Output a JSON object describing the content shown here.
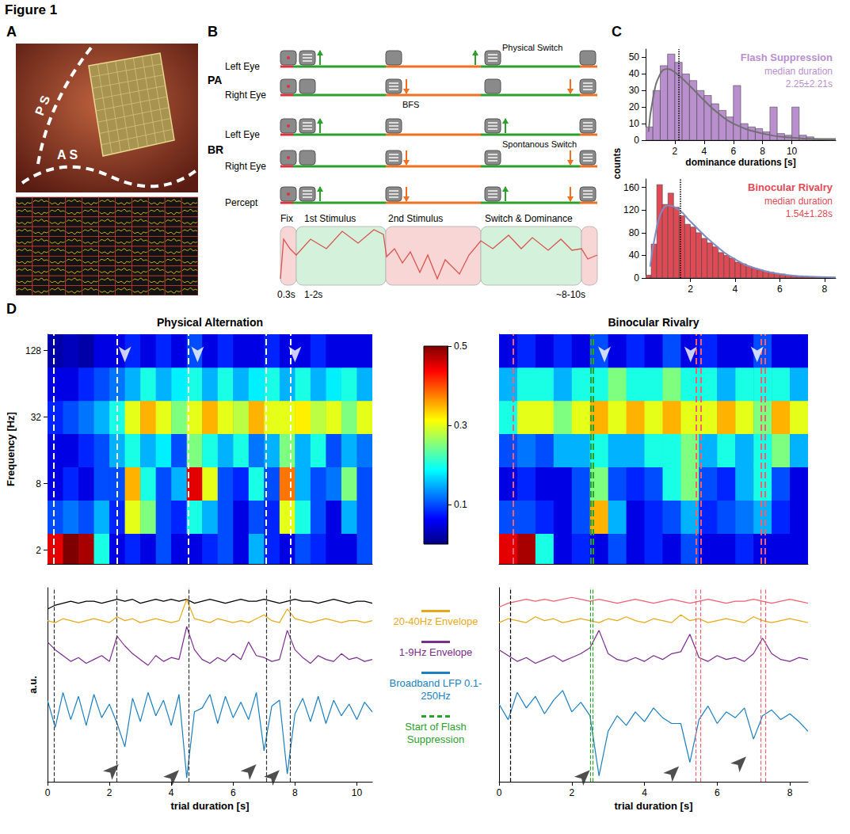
{
  "title": "Figure 1",
  "panel_a": {
    "letter": "A",
    "labels": [
      "P S",
      "A S"
    ]
  },
  "panel_b": {
    "letter": "B",
    "rows": [
      {
        "group": "PA",
        "eyes": [
          "Left Eye",
          "Right Eye"
        ]
      },
      {
        "group": "BR",
        "eyes": [
          "Left Eye",
          "Right Eye"
        ]
      }
    ],
    "percept": "Percept",
    "notes": [
      "Physical Switch",
      "BFS",
      "Spontanous Switch"
    ],
    "phases": [
      "Fix",
      "1st Stimulus",
      "2nd Stimulus",
      "Switch & Dominance"
    ],
    "times": [
      "0.3s",
      "1-2s",
      "~8-10s"
    ]
  },
  "panel_c": {
    "letter": "C",
    "ylabel": "counts"
  },
  "panel_d": {
    "letter": "D",
    "colorbar": {
      "range": [
        0,
        0.5
      ],
      "ticks": [
        0.1,
        0.3,
        0.5
      ]
    }
  },
  "chart_data": [
    {
      "type": "histogram",
      "title": "Flash Suppression",
      "annotations": [
        "median duration",
        "2.25±2.21s"
      ],
      "xlabel": "dominance durations [s]",
      "bins": [
        0,
        0.5,
        1,
        1.5,
        2,
        2.5,
        3,
        3.5,
        4,
        4.5,
        5,
        5.5,
        6,
        6.5,
        7,
        7.5,
        8,
        8.5,
        9,
        9.5,
        10,
        10.5,
        11,
        11.5,
        12,
        12.5,
        13
      ],
      "counts": [
        8,
        30,
        45,
        52,
        47,
        40,
        36,
        30,
        27,
        22,
        18,
        14,
        33,
        10,
        8,
        7,
        5,
        20,
        4,
        3,
        20,
        3,
        2,
        1,
        1,
        1
      ],
      "color": "#b98fce",
      "median": 2.25,
      "fit": {
        "x": [
          0.2,
          0.5,
          1,
          1.5,
          2,
          3,
          4,
          5,
          6,
          8,
          10,
          13
        ],
        "y": [
          5,
          25,
          40,
          43,
          41,
          33,
          24,
          16,
          10,
          4,
          1.5,
          0.3
        ],
        "color": "#707070"
      },
      "xlim": [
        0,
        13
      ],
      "ylim": [
        0,
        55
      ],
      "xticks": [
        2,
        4,
        6,
        8,
        10
      ],
      "yticks": [
        0,
        10,
        20,
        30,
        40,
        50
      ]
    },
    {
      "type": "histogram",
      "title": "Binocular Rivalry",
      "annotations": [
        "median duration",
        "1.54±1.28s"
      ],
      "bins": [
        0,
        0.25,
        0.5,
        0.75,
        1,
        1.25,
        1.5,
        1.75,
        2,
        2.25,
        2.5,
        2.75,
        3,
        3.25,
        3.5,
        3.75,
        4,
        4.25,
        4.5,
        4.75,
        5,
        5.25,
        5.5,
        5.75,
        6,
        6.25,
        6.5,
        6.75,
        7,
        7.25,
        7.5,
        7.75,
        8,
        8.25,
        8.5
      ],
      "counts": [
        5,
        60,
        165,
        130,
        150,
        125,
        110,
        95,
        90,
        80,
        70,
        62,
        55,
        45,
        40,
        35,
        28,
        25,
        20,
        17,
        14,
        12,
        10,
        8,
        7,
        5,
        4,
        3,
        3,
        2,
        2,
        1,
        1,
        1
      ],
      "color": "#e04a55",
      "median": 1.54,
      "fit": {
        "x": [
          0.2,
          0.5,
          0.75,
          1,
          1.5,
          2,
          3,
          4,
          5,
          6,
          7,
          8.5
        ],
        "y": [
          20,
          90,
          120,
          128,
          120,
          100,
          62,
          33,
          16,
          7,
          3,
          1
        ],
        "color": "#7f8cbf"
      },
      "xlim": [
        0,
        8.5
      ],
      "ylim": [
        0,
        175
      ],
      "xticks": [
        2,
        4,
        6,
        8
      ],
      "yticks": [
        0,
        40,
        80,
        120,
        160
      ]
    },
    {
      "type": "heatmap",
      "title": "Physical Alternation",
      "ylabel": "Frequency [Hz]",
      "log": "y",
      "x": [
        0.25,
        0.75,
        1.25,
        1.75,
        2.25,
        2.75,
        3.25,
        3.75,
        4.25,
        4.75,
        5.25,
        5.75,
        6.25,
        6.75,
        7.25,
        7.75,
        8.25,
        8.75,
        9.25,
        9.75,
        10.25
      ],
      "frequencies": [
        2,
        4,
        8,
        16,
        32,
        64,
        128
      ],
      "cells": [
        [
          0.45,
          0.5,
          0.48,
          0.2,
          0.05,
          0.08,
          0.05,
          0.1,
          0.05,
          0.05,
          0.08,
          0.1,
          0.05,
          0.15,
          0.08,
          0.05,
          0.1,
          0.08,
          0.05,
          0.05,
          0.1
        ],
        [
          0.1,
          0.12,
          0.1,
          0.15,
          0.08,
          0.3,
          0.25,
          0.1,
          0.08,
          0.2,
          0.15,
          0.1,
          0.05,
          0.1,
          0.08,
          0.3,
          0.2,
          0.1,
          0.05,
          0.15,
          0.1
        ],
        [
          0.05,
          0.08,
          0.05,
          0.1,
          0.1,
          0.35,
          0.2,
          0.1,
          0.15,
          0.45,
          0.3,
          0.1,
          0.08,
          0.2,
          0.1,
          0.38,
          0.15,
          0.1,
          0.12,
          0.25,
          0.1
        ],
        [
          0.05,
          0.05,
          0.08,
          0.1,
          0.15,
          0.2,
          0.15,
          0.18,
          0.1,
          0.25,
          0.2,
          0.15,
          0.2,
          0.12,
          0.15,
          0.25,
          0.15,
          0.2,
          0.1,
          0.15,
          0.12
        ],
        [
          0.08,
          0.1,
          0.12,
          0.15,
          0.2,
          0.3,
          0.35,
          0.3,
          0.25,
          0.3,
          0.35,
          0.3,
          0.28,
          0.35,
          0.3,
          0.3,
          0.32,
          0.28,
          0.3,
          0.25,
          0.3
        ],
        [
          0.05,
          0.05,
          0.08,
          0.1,
          0.12,
          0.15,
          0.2,
          0.15,
          0.18,
          0.2,
          0.15,
          0.2,
          0.15,
          0.18,
          0.2,
          0.15,
          0.2,
          0.15,
          0.18,
          0.2,
          0.15
        ],
        [
          0.02,
          0.03,
          0.02,
          0.05,
          0.05,
          0.08,
          0.05,
          0.08,
          0.05,
          0.1,
          0.05,
          0.08,
          0.05,
          0.05,
          0.08,
          0.05,
          0.05,
          0.08,
          0.05,
          0.05,
          0.05
        ]
      ],
      "xlim": [
        0,
        10.5
      ],
      "ylim": [
        1.5,
        180
      ],
      "yticks": [
        2,
        8,
        32,
        128
      ],
      "tick_labels": "y",
      "events": [
        {
          "color": "#ffffff",
          "x": [
            0.2,
            2.24,
            4.56,
            7.07,
            7.85
          ]
        }
      ],
      "arrows": [
        [
          2.5,
          100
        ],
        [
          4.85,
          100
        ],
        [
          8.0,
          100
        ]
      ]
    },
    {
      "type": "heatmap",
      "title": "Binocular Rivalry",
      "log": "y",
      "x": [
        0.25,
        0.75,
        1.25,
        1.75,
        2.25,
        2.75,
        3.25,
        3.75,
        4.25,
        4.75,
        5.25,
        5.75,
        6.25,
        6.75,
        7.25,
        7.75,
        8.25
      ],
      "frequencies": [
        2,
        4,
        8,
        16,
        32,
        64,
        128
      ],
      "cells": [
        [
          0.45,
          0.48,
          0.2,
          0.05,
          0.08,
          0.05,
          0.1,
          0.05,
          0.08,
          0.05,
          0.1,
          0.05,
          0.05,
          0.08,
          0.05,
          0.05,
          0.05
        ],
        [
          0.1,
          0.1,
          0.08,
          0.05,
          0.1,
          0.35,
          0.15,
          0.05,
          0.08,
          0.1,
          0.15,
          0.08,
          0.1,
          0.12,
          0.15,
          0.08,
          0.05
        ],
        [
          0.05,
          0.08,
          0.05,
          0.05,
          0.1,
          0.25,
          0.1,
          0.08,
          0.1,
          0.2,
          0.25,
          0.1,
          0.08,
          0.15,
          0.2,
          0.1,
          0.05
        ],
        [
          0.1,
          0.12,
          0.1,
          0.15,
          0.15,
          0.2,
          0.15,
          0.15,
          0.2,
          0.2,
          0.25,
          0.15,
          0.2,
          0.15,
          0.2,
          0.25,
          0.15
        ],
        [
          0.2,
          0.3,
          0.3,
          0.25,
          0.3,
          0.35,
          0.3,
          0.35,
          0.3,
          0.35,
          0.3,
          0.3,
          0.35,
          0.3,
          0.25,
          0.35,
          0.3
        ],
        [
          0.15,
          0.2,
          0.2,
          0.15,
          0.2,
          0.2,
          0.25,
          0.2,
          0.2,
          0.25,
          0.2,
          0.2,
          0.15,
          0.2,
          0.2,
          0.2,
          0.15
        ],
        [
          0.05,
          0.08,
          0.05,
          0.08,
          0.05,
          0.1,
          0.05,
          0.08,
          0.05,
          0.1,
          0.05,
          0.08,
          0.05,
          0.05,
          0.1,
          0.05,
          0.05
        ]
      ],
      "xlim": [
        0,
        8.5
      ],
      "ylim": [
        1.5,
        180
      ],
      "tick_labels": false,
      "events": [
        {
          "color": "#f06070",
          "x": [
            0.38,
            5.42,
            5.55,
            7.2,
            7.32
          ]
        },
        {
          "name": "Start of Flash Suppression",
          "color": "#2ca02c",
          "x": [
            2.52,
            2.58
          ]
        }
      ],
      "arrows": [
        [
          2.9,
          100
        ],
        [
          5.27,
          100
        ],
        [
          7.1,
          100
        ]
      ]
    },
    {
      "type": "line",
      "ylabel": "a.u.",
      "xlabel": "trial duration [s]",
      "x": [
        0,
        0.25,
        0.5,
        0.75,
        1,
        1.25,
        1.5,
        1.75,
        2,
        2.25,
        2.5,
        2.75,
        3,
        3.25,
        3.5,
        3.75,
        4,
        4.25,
        4.5,
        4.75,
        5,
        5.25,
        5.5,
        5.75,
        6,
        6.25,
        6.5,
        6.75,
        7,
        7.25,
        7.5,
        7.75,
        8,
        8.25,
        8.5,
        8.75,
        9,
        9.25,
        9.5,
        9.75,
        10,
        10.25,
        10.5
      ],
      "series": [
        {
          "color": "#000000",
          "values": [
            8.9,
            9.1,
            9.2,
            9.3,
            9.2,
            9.3,
            9.3,
            9.2,
            9.3,
            9.4,
            9.3,
            9.4,
            9.2,
            9.3,
            9.4,
            9.3,
            9.4,
            9.3,
            9.4,
            9.2,
            9.3,
            9.4,
            9.3,
            9.2,
            9.3,
            9.4,
            9.3,
            9.3,
            9.4,
            9.3,
            9.2,
            9.3,
            9.4,
            9.3,
            9.3,
            9.2,
            9.3,
            9.4,
            9.3,
            9.2,
            9.3,
            9.3,
            9.2
          ]
        },
        {
          "name": "20-40Hz Envelope",
          "color": "#e8a919",
          "values": [
            8.3,
            8.2,
            8.4,
            8.3,
            8.2,
            8.3,
            8.4,
            8.3,
            8.2,
            8.5,
            8.3,
            8.4,
            8.2,
            8.3,
            8.4,
            8.3,
            8.2,
            8.3,
            9.4,
            8.4,
            8.3,
            8.2,
            8.4,
            8.3,
            8.2,
            8.3,
            8.2,
            8.4,
            8.6,
            8.3,
            8.2,
            8.9,
            8.4,
            8.3,
            8.2,
            8.3,
            8.4,
            8.3,
            8.2,
            8.3,
            8.3,
            8.2,
            8.3
          ]
        },
        {
          "name": "1-9Hz Envelope",
          "color": "#7b2d8e",
          "values": [
            7.2,
            6.8,
            6.5,
            6.2,
            6.4,
            6.1,
            6.3,
            6.5,
            6.2,
            7.5,
            7.0,
            6.6,
            6.3,
            6.0,
            6.5,
            6.2,
            6.4,
            6.3,
            8.0,
            6.8,
            6.3,
            6.1,
            6.4,
            6.2,
            6.6,
            6.3,
            7.2,
            6.5,
            6.4,
            6.2,
            6.3,
            7.8,
            6.8,
            6.4,
            6.1,
            6.5,
            6.3,
            6.2,
            6.6,
            6.3,
            6.4,
            6.2,
            6.3
          ]
        },
        {
          "name": "Broadband LFP 0.1-250Hz",
          "color": "#1a7fc1",
          "values": [
            4.2,
            2.8,
            4.6,
            3.2,
            4.4,
            2.9,
            4.5,
            3.3,
            4.0,
            3.0,
            1.8,
            4.3,
            3.1,
            4.6,
            3.4,
            4.2,
            2.9,
            4.5,
            0.2,
            3.6,
            3.8,
            4.5,
            3.0,
            4.4,
            3.3,
            4.1,
            3.2,
            4.6,
            1.6,
            3.9,
            4.2,
            0.4,
            3.5,
            4.3,
            3.1,
            4.4,
            3.0,
            4.2,
            3.4,
            4.0,
            3.2,
            4.1,
            3.6
          ]
        }
      ],
      "xlim": [
        0,
        10.5
      ],
      "ylim": [
        0,
        10
      ],
      "xticks": [
        0,
        2,
        4,
        6,
        8,
        10
      ],
      "tick_labels": "x",
      "events": [
        {
          "color": "#333333",
          "x": [
            0.2,
            2.24,
            4.56,
            7.07,
            7.85
          ]
        }
      ],
      "arrows": [
        [
          2.3,
          0.9
        ],
        [
          4.25,
          0.6
        ],
        [
          6.75,
          0.9
        ],
        [
          7.5,
          0.6
        ]
      ]
    },
    {
      "type": "line",
      "xlabel": "trial duration [s]",
      "x": [
        0,
        0.25,
        0.5,
        0.75,
        1,
        1.25,
        1.5,
        1.75,
        2,
        2.25,
        2.5,
        2.75,
        3,
        3.25,
        3.5,
        3.75,
        4,
        4.25,
        4.5,
        4.75,
        5,
        5.25,
        5.5,
        5.75,
        6,
        6.25,
        6.5,
        6.75,
        7,
        7.25,
        7.5,
        7.75,
        8,
        8.25,
        8.5
      ],
      "series": [
        {
          "color": "#f06070",
          "values": [
            9.0,
            9.2,
            9.3,
            9.4,
            9.3,
            9.4,
            9.3,
            9.4,
            9.5,
            9.4,
            9.3,
            9.4,
            9.3,
            9.2,
            9.3,
            9.4,
            9.3,
            9.2,
            9.3,
            9.4,
            9.3,
            9.2,
            9.3,
            9.4,
            9.3,
            9.2,
            9.3,
            9.3,
            9.4,
            9.3,
            9.2,
            9.3,
            9.4,
            9.3,
            9.2
          ]
        },
        {
          "color": "#e8a919",
          "values": [
            8.2,
            8.4,
            8.3,
            8.2,
            8.5,
            8.3,
            8.4,
            8.2,
            8.3,
            8.4,
            8.3,
            8.2,
            8.4,
            8.3,
            8.5,
            8.3,
            8.2,
            8.4,
            8.3,
            8.2,
            8.6,
            8.3,
            8.4,
            8.2,
            8.3,
            8.4,
            8.3,
            8.2,
            8.5,
            8.3,
            8.2,
            8.3,
            8.4,
            8.3,
            8.2
          ]
        },
        {
          "color": "#7b2d8e",
          "values": [
            6.8,
            6.5,
            6.2,
            6.4,
            6.1,
            6.3,
            6.5,
            6.2,
            6.4,
            6.6,
            6.9,
            7.8,
            6.6,
            6.3,
            6.2,
            6.4,
            6.2,
            6.5,
            6.3,
            6.6,
            6.7,
            7.6,
            6.4,
            6.2,
            6.5,
            6.3,
            6.4,
            6.2,
            6.6,
            7.4,
            6.6,
            6.3,
            6.2,
            6.4,
            6.3
          ]
        },
        {
          "color": "#1a7fc1",
          "values": [
            4.0,
            3.2,
            4.6,
            3.8,
            4.4,
            3.5,
            4.2,
            4.7,
            3.6,
            4.1,
            3.4,
            0.3,
            2.6,
            3.4,
            2.9,
            3.6,
            3.1,
            3.8,
            3.3,
            3.0,
            3.0,
            1.0,
            3.2,
            3.9,
            3.0,
            3.6,
            3.3,
            3.8,
            2.2,
            3.4,
            3.7,
            3.2,
            3.5,
            3.1,
            2.6
          ]
        }
      ],
      "xlim": [
        0,
        8.5
      ],
      "ylim": [
        0,
        10
      ],
      "xticks": [
        0,
        2,
        4,
        6,
        8
      ],
      "tick_labels": "x",
      "events": [
        {
          "color": "#000000",
          "x": [
            0.3
          ]
        },
        {
          "color": "#2ca02c",
          "x": [
            2.52,
            2.58
          ]
        },
        {
          "color": "#f06070",
          "x": [
            5.42,
            5.55,
            7.2,
            7.32
          ]
        }
      ],
      "arrows": [
        [
          2.5,
          0.6
        ],
        [
          4.95,
          0.8
        ],
        [
          6.8,
          1.3
        ]
      ]
    }
  ]
}
